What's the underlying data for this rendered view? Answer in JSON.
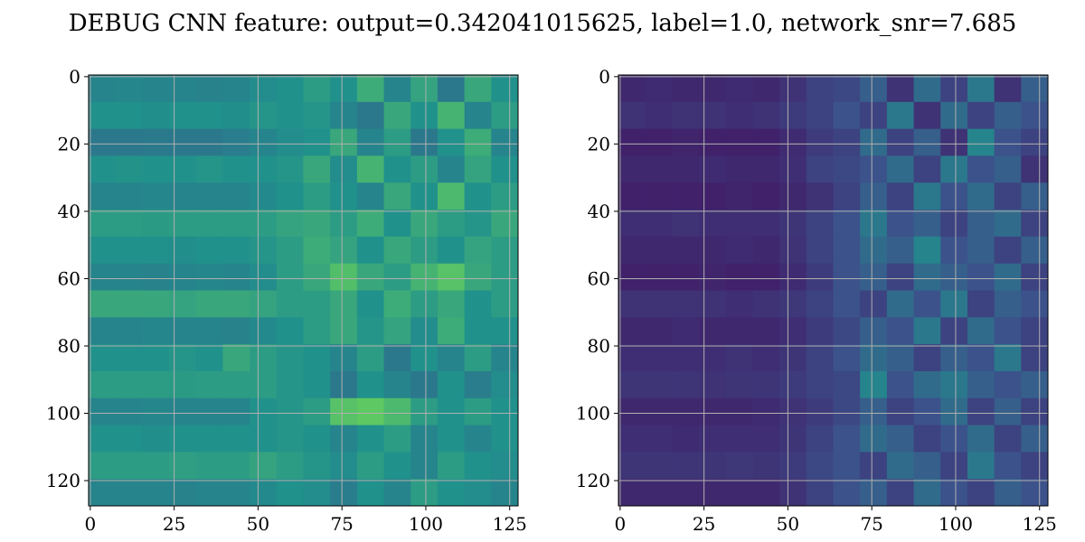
{
  "figure_title": "DEBUG CNN feature: output=0.342041015625, label=1.0, network_snr=7.685",
  "chart_data": [
    {
      "type": "heatmap",
      "cmap": "viridis",
      "clim": [
        0,
        1
      ],
      "grid": true,
      "xlim": [
        -0.5,
        127.5
      ],
      "ylim": [
        127.5,
        -0.5
      ],
      "xticks": [
        0,
        25,
        50,
        75,
        100,
        125
      ],
      "yticks": [
        0,
        20,
        40,
        60,
        80,
        100,
        120
      ],
      "values": [
        [
          0.45,
          0.46,
          0.45,
          0.45,
          0.44,
          0.45,
          0.48,
          0.5,
          0.55,
          0.5,
          0.62,
          0.45,
          0.58,
          0.4,
          0.6,
          0.5
        ],
        [
          0.5,
          0.5,
          0.49,
          0.5,
          0.5,
          0.49,
          0.52,
          0.5,
          0.52,
          0.45,
          0.4,
          0.6,
          0.5,
          0.65,
          0.45,
          0.55
        ],
        [
          0.4,
          0.4,
          0.41,
          0.4,
          0.4,
          0.42,
          0.45,
          0.48,
          0.5,
          0.6,
          0.45,
          0.55,
          0.4,
          0.5,
          0.62,
          0.45
        ],
        [
          0.5,
          0.51,
          0.5,
          0.5,
          0.52,
          0.5,
          0.5,
          0.52,
          0.6,
          0.48,
          0.65,
          0.5,
          0.55,
          0.45,
          0.58,
          0.5
        ],
        [
          0.45,
          0.45,
          0.46,
          0.45,
          0.45,
          0.45,
          0.47,
          0.5,
          0.55,
          0.5,
          0.45,
          0.6,
          0.5,
          0.68,
          0.5,
          0.55
        ],
        [
          0.55,
          0.55,
          0.54,
          0.55,
          0.55,
          0.55,
          0.55,
          0.58,
          0.6,
          0.55,
          0.62,
          0.5,
          0.6,
          0.55,
          0.52,
          0.6
        ],
        [
          0.5,
          0.5,
          0.5,
          0.49,
          0.5,
          0.5,
          0.52,
          0.55,
          0.62,
          0.58,
          0.5,
          0.6,
          0.55,
          0.5,
          0.58,
          0.55
        ],
        [
          0.45,
          0.45,
          0.44,
          0.45,
          0.46,
          0.45,
          0.48,
          0.55,
          0.6,
          0.7,
          0.6,
          0.55,
          0.65,
          0.72,
          0.6,
          0.55
        ],
        [
          0.6,
          0.6,
          0.6,
          0.58,
          0.6,
          0.6,
          0.58,
          0.55,
          0.55,
          0.6,
          0.5,
          0.62,
          0.55,
          0.6,
          0.5,
          0.55
        ],
        [
          0.45,
          0.45,
          0.46,
          0.45,
          0.45,
          0.44,
          0.47,
          0.5,
          0.55,
          0.6,
          0.52,
          0.58,
          0.48,
          0.62,
          0.5,
          0.5
        ],
        [
          0.5,
          0.5,
          0.5,
          0.52,
          0.5,
          0.6,
          0.55,
          0.52,
          0.5,
          0.45,
          0.55,
          0.4,
          0.5,
          0.45,
          0.55,
          0.45
        ],
        [
          0.55,
          0.55,
          0.55,
          0.54,
          0.55,
          0.55,
          0.55,
          0.52,
          0.5,
          0.4,
          0.5,
          0.45,
          0.4,
          0.5,
          0.42,
          0.48
        ],
        [
          0.45,
          0.45,
          0.46,
          0.45,
          0.45,
          0.45,
          0.5,
          0.52,
          0.55,
          0.72,
          0.75,
          0.68,
          0.55,
          0.5,
          0.55,
          0.5
        ],
        [
          0.5,
          0.5,
          0.49,
          0.5,
          0.5,
          0.5,
          0.5,
          0.52,
          0.5,
          0.45,
          0.5,
          0.55,
          0.45,
          0.5,
          0.45,
          0.5
        ],
        [
          0.55,
          0.55,
          0.55,
          0.56,
          0.55,
          0.55,
          0.58,
          0.55,
          0.52,
          0.48,
          0.55,
          0.5,
          0.45,
          0.55,
          0.5,
          0.48
        ],
        [
          0.45,
          0.45,
          0.45,
          0.44,
          0.45,
          0.45,
          0.47,
          0.5,
          0.48,
          0.42,
          0.5,
          0.45,
          0.55,
          0.5,
          0.48,
          0.45
        ]
      ]
    },
    {
      "type": "heatmap",
      "cmap": "viridis",
      "clim": [
        0,
        1
      ],
      "grid": true,
      "xlim": [
        -0.5,
        127.5
      ],
      "ylim": [
        127.5,
        -0.5
      ],
      "xticks": [
        0,
        25,
        50,
        75,
        100,
        125
      ],
      "yticks": [
        0,
        20,
        40,
        60,
        80,
        100,
        120
      ],
      "values": [
        [
          0.12,
          0.13,
          0.12,
          0.12,
          0.13,
          0.12,
          0.15,
          0.2,
          0.22,
          0.3,
          0.15,
          0.35,
          0.2,
          0.4,
          0.15,
          0.3
        ],
        [
          0.15,
          0.14,
          0.15,
          0.15,
          0.14,
          0.15,
          0.18,
          0.2,
          0.25,
          0.2,
          0.4,
          0.15,
          0.35,
          0.2,
          0.3,
          0.25
        ],
        [
          0.1,
          0.1,
          0.11,
          0.1,
          0.1,
          0.1,
          0.13,
          0.18,
          0.2,
          0.35,
          0.2,
          0.3,
          0.15,
          0.45,
          0.25,
          0.2
        ],
        [
          0.12,
          0.12,
          0.12,
          0.13,
          0.12,
          0.12,
          0.14,
          0.2,
          0.22,
          0.25,
          0.35,
          0.2,
          0.4,
          0.25,
          0.3,
          0.15
        ],
        [
          0.1,
          0.1,
          0.1,
          0.1,
          0.11,
          0.1,
          0.12,
          0.15,
          0.2,
          0.3,
          0.2,
          0.4,
          0.25,
          0.35,
          0.2,
          0.3
        ],
        [
          0.14,
          0.14,
          0.15,
          0.14,
          0.14,
          0.14,
          0.16,
          0.2,
          0.25,
          0.4,
          0.25,
          0.3,
          0.2,
          0.3,
          0.35,
          0.2
        ],
        [
          0.12,
          0.12,
          0.12,
          0.12,
          0.13,
          0.12,
          0.15,
          0.2,
          0.25,
          0.35,
          0.3,
          0.45,
          0.25,
          0.3,
          0.2,
          0.3
        ],
        [
          0.1,
          0.1,
          0.1,
          0.11,
          0.1,
          0.1,
          0.13,
          0.18,
          0.25,
          0.3,
          0.2,
          0.35,
          0.3,
          0.25,
          0.35,
          0.2
        ],
        [
          0.15,
          0.15,
          0.15,
          0.15,
          0.14,
          0.15,
          0.17,
          0.2,
          0.25,
          0.2,
          0.35,
          0.25,
          0.4,
          0.2,
          0.3,
          0.25
        ],
        [
          0.12,
          0.12,
          0.13,
          0.12,
          0.12,
          0.12,
          0.14,
          0.18,
          0.22,
          0.3,
          0.25,
          0.4,
          0.2,
          0.35,
          0.25,
          0.2
        ],
        [
          0.14,
          0.14,
          0.14,
          0.14,
          0.15,
          0.14,
          0.16,
          0.2,
          0.25,
          0.35,
          0.3,
          0.2,
          0.3,
          0.25,
          0.4,
          0.2
        ],
        [
          0.16,
          0.16,
          0.16,
          0.15,
          0.16,
          0.16,
          0.18,
          0.2,
          0.22,
          0.45,
          0.25,
          0.35,
          0.4,
          0.3,
          0.25,
          0.3
        ],
        [
          0.12,
          0.12,
          0.12,
          0.12,
          0.12,
          0.13,
          0.15,
          0.18,
          0.22,
          0.3,
          0.2,
          0.25,
          0.35,
          0.2,
          0.3,
          0.2
        ],
        [
          0.14,
          0.14,
          0.13,
          0.14,
          0.14,
          0.14,
          0.16,
          0.2,
          0.25,
          0.35,
          0.3,
          0.2,
          0.25,
          0.35,
          0.2,
          0.3
        ],
        [
          0.16,
          0.16,
          0.16,
          0.16,
          0.17,
          0.16,
          0.18,
          0.22,
          0.25,
          0.2,
          0.35,
          0.3,
          0.2,
          0.4,
          0.25,
          0.2
        ],
        [
          0.12,
          0.12,
          0.12,
          0.12,
          0.12,
          0.12,
          0.15,
          0.2,
          0.25,
          0.3,
          0.2,
          0.35,
          0.25,
          0.2,
          0.3,
          0.25
        ]
      ]
    }
  ]
}
